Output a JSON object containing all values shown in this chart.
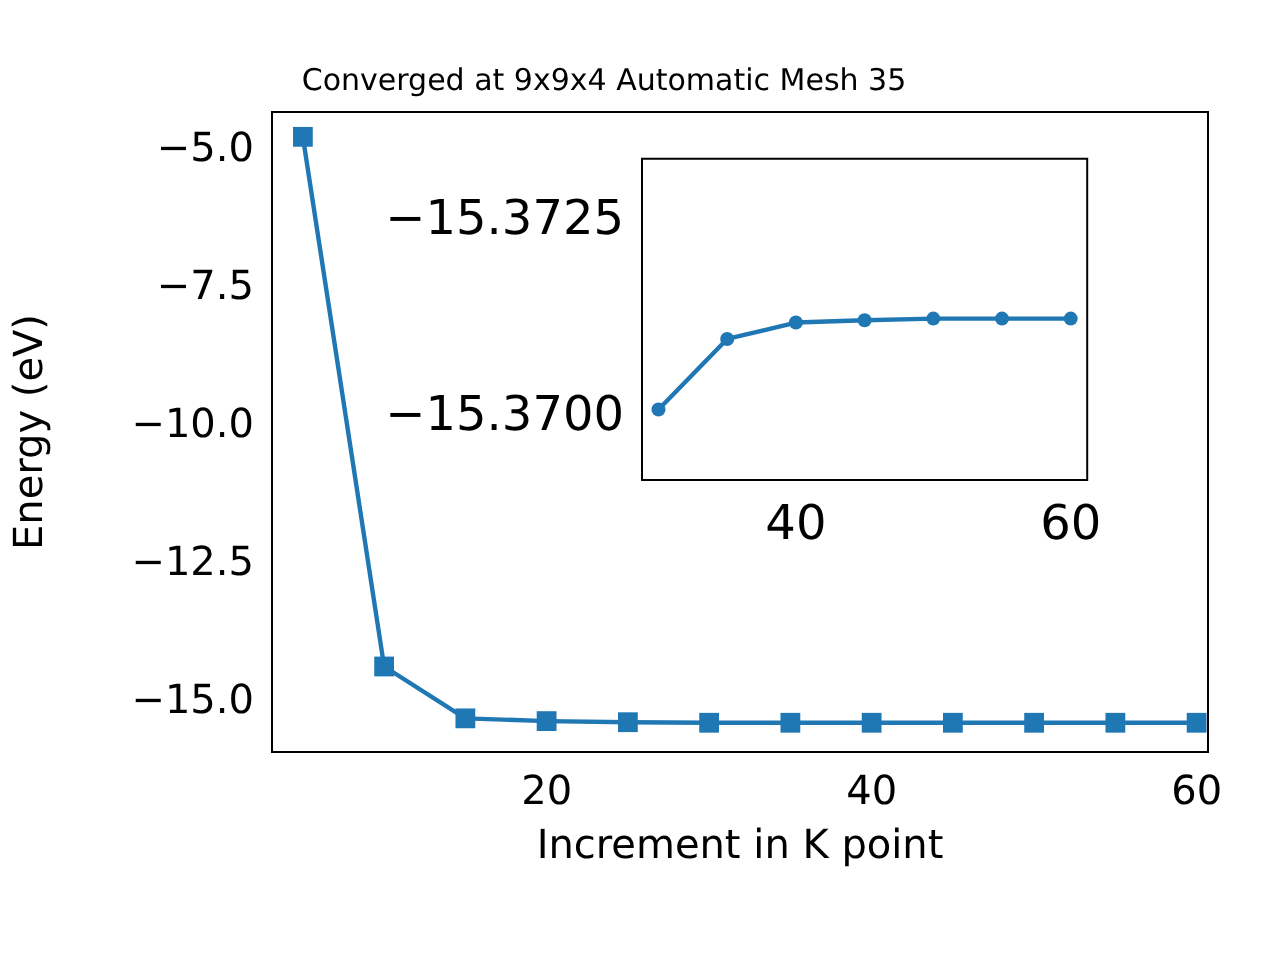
{
  "chart_data": [
    {
      "type": "line",
      "title": "Converged at 9x9x4 Automatic Mesh 35",
      "xlabel": "Increment in K point",
      "ylabel": "Energy (eV)",
      "marker": "square",
      "grid": false,
      "legend": false,
      "x": [
        5,
        10,
        15,
        20,
        25,
        30,
        35,
        40,
        45,
        50,
        55,
        60
      ],
      "series": [
        {
          "color": "#1f77b4",
          "values": [
            -4.75,
            -14.35,
            -15.29,
            -15.34,
            -15.36,
            -15.37,
            -15.37,
            -15.37,
            -15.37,
            -15.37,
            -15.37,
            -15.37
          ]
        }
      ],
      "xlim": [
        3.1,
        60.7
      ],
      "xticks": [
        20,
        40,
        60
      ],
      "ylim": [
        -15.9,
        -4.3
      ],
      "yticks": [
        {
          "value": -5,
          "label": "−5.0"
        },
        {
          "value": -7.5,
          "label": "−7.5"
        },
        {
          "value": -10,
          "label": "−10.0"
        },
        {
          "value": -12.5,
          "label": "−12.5"
        },
        {
          "value": -15,
          "label": "−15.0"
        }
      ]
    },
    {
      "type": "line",
      "marker": "circle",
      "grid": false,
      "legend": false,
      "x": [
        30,
        35,
        40,
        45,
        50,
        55,
        60
      ],
      "series": [
        {
          "color": "#1f77b4",
          "values": [
            -15.3701,
            -15.371,
            -15.37121,
            -15.37124,
            -15.37126,
            -15.37126,
            -15.37126
          ]
        }
      ],
      "xlim": [
        28.8,
        61.2
      ],
      "xticks": [
        40,
        60
      ],
      "ylim": [
        -15.3692,
        -15.3733
      ],
      "yticks": [
        {
          "value": -15.3725,
          "label": "−15.3725"
        },
        {
          "value": -15.37,
          "label": "−15.3700"
        }
      ]
    }
  ]
}
